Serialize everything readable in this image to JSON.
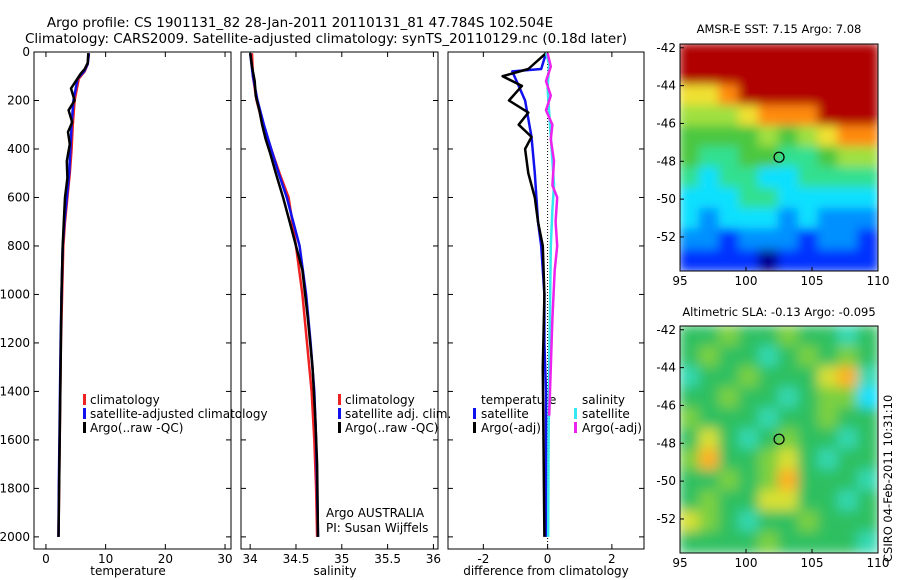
{
  "title": {
    "line1": "Argo profile: CS 1901131_82 28-Jan-2011 20110131_81 47.784S 102.504E",
    "line2": "Climatology: CARS2009. Satellite-adjusted climatology: synTS_20110129.nc (0.18d later)"
  },
  "footer_credit": "CSIRO 04-Feb-2011 10:31:10",
  "colors": {
    "climatology": "#ee2222",
    "satellite": "#1111ee",
    "argo": "#000000",
    "sal_satellite": "#33e8ee",
    "sal_argo": "#ee22ee",
    "zero_line": "#000000"
  },
  "chart_data": [
    {
      "type": "line",
      "id": "temperature",
      "xlabel": "temperature",
      "ylabel": "",
      "xlim": [
        -2,
        31
      ],
      "ylim": [
        2050,
        0
      ],
      "xticks": [
        0,
        10,
        20,
        30
      ],
      "xtick_labels": [
        "0",
        "10",
        "20",
        "30"
      ],
      "yticks": [
        0,
        200,
        400,
        600,
        800,
        1000,
        1200,
        1400,
        1600,
        1800,
        2000
      ],
      "ytick_labels": [
        "0",
        "200",
        "400",
        "600",
        "800",
        "1000",
        "1200",
        "1400",
        "1600",
        "1800",
        "2000"
      ],
      "legend": [
        "climatology",
        "satellite-adjusted climatology",
        "Argo(..raw -QC)"
      ],
      "legend_position": "lower-right",
      "series": [
        {
          "name": "climatology",
          "color_key": "climatology",
          "x": [
            7.2,
            7.0,
            6.5,
            5.5,
            4.8,
            4.5,
            4.3,
            4.0,
            3.6,
            3.2,
            2.9,
            2.7,
            2.5,
            2.4,
            2.3,
            2.2,
            2.1
          ],
          "y": [
            5,
            50,
            80,
            110,
            200,
            300,
            400,
            500,
            600,
            700,
            800,
            1000,
            1200,
            1400,
            1600,
            1800,
            2000
          ]
        },
        {
          "name": "satellite-adjusted climatology",
          "color_key": "satellite",
          "x": [
            7.2,
            7.0,
            6.4,
            5.3,
            4.6,
            4.3,
            4.1,
            3.9,
            3.5,
            3.1,
            2.8,
            2.6,
            2.45,
            2.35,
            2.25,
            2.15,
            2.1
          ],
          "y": [
            5,
            50,
            80,
            110,
            200,
            300,
            400,
            500,
            600,
            700,
            800,
            1000,
            1200,
            1400,
            1600,
            1800,
            2000
          ]
        },
        {
          "name": "Argo(..raw -QC)",
          "color_key": "argo",
          "x": [
            7.1,
            7.0,
            6.5,
            5.8,
            4.2,
            4.8,
            3.8,
            4.4,
            3.7,
            4.0,
            3.5,
            3.6,
            3.2,
            3.0,
            2.8,
            2.6,
            2.5,
            2.4,
            2.3,
            2.2,
            2.1
          ],
          "y": [
            5,
            45,
            70,
            90,
            150,
            200,
            240,
            290,
            330,
            380,
            450,
            520,
            600,
            700,
            800,
            1000,
            1200,
            1400,
            1600,
            1800,
            2000
          ]
        }
      ]
    },
    {
      "type": "line",
      "id": "salinity",
      "xlabel": "salinity",
      "xlim": [
        33.9,
        36.05
      ],
      "ylim": [
        2050,
        0
      ],
      "xticks": [
        34,
        34.5,
        35,
        35.5,
        36
      ],
      "xtick_labels": [
        "34",
        "34.5",
        "35",
        "35.5",
        "36"
      ],
      "legend": [
        "climatology",
        "satellite adj. clim.",
        "Argo(..raw -QC)"
      ],
      "legend_position": "lower-right",
      "annotation": [
        "Argo AUSTRALIA",
        "PI: Susan Wijffels"
      ],
      "series": [
        {
          "name": "climatology",
          "color_key": "climatology",
          "x": [
            34.02,
            34.03,
            34.07,
            34.14,
            34.23,
            34.32,
            34.42,
            34.5,
            34.57,
            34.62,
            34.67,
            34.7,
            34.72,
            34.73
          ],
          "y": [
            5,
            100,
            200,
            300,
            400,
            500,
            600,
            800,
            1000,
            1200,
            1400,
            1600,
            1800,
            2000
          ]
        },
        {
          "name": "satellite adj. clim.",
          "color_key": "satellite",
          "x": [
            34.0,
            34.03,
            34.08,
            34.15,
            34.23,
            34.31,
            34.4,
            34.54,
            34.61,
            34.66,
            34.7,
            34.72,
            34.73,
            34.74
          ],
          "y": [
            5,
            100,
            200,
            300,
            400,
            500,
            600,
            800,
            1000,
            1200,
            1400,
            1600,
            1800,
            2000
          ]
        },
        {
          "name": "Argo(..raw -QC)",
          "color_key": "argo",
          "x": [
            34.0,
            34.02,
            34.05,
            34.06,
            34.1,
            34.13,
            34.17,
            34.22,
            34.28,
            34.36,
            34.43,
            34.57,
            34.63,
            34.68,
            34.71,
            34.73,
            34.74
          ],
          "y": [
            5,
            60,
            120,
            180,
            240,
            300,
            360,
            420,
            500,
            600,
            700,
            900,
            1100,
            1300,
            1500,
            1700,
            2000
          ]
        }
      ]
    },
    {
      "type": "line",
      "id": "difference",
      "xlabel": "difference from climatology",
      "xlim": [
        -3.1,
        3.0
      ],
      "ylim": [
        2050,
        0
      ],
      "xticks": [
        -2,
        0,
        2
      ],
      "xtick_labels": [
        "-2",
        "0",
        "2"
      ],
      "legend_temperature": {
        "title": "temperature",
        "items": [
          "satellite",
          "Argo(-adj)"
        ]
      },
      "legend_salinity": {
        "title": "salinity",
        "items": [
          "satellite",
          "Argo(-adj)"
        ]
      },
      "legend_position": "lower-middle",
      "series": [
        {
          "name": "temperature satellite",
          "color_key": "satellite",
          "x": [
            -0.05,
            -0.2,
            -1.1,
            -0.7,
            -0.5,
            -0.4,
            -0.35,
            -0.3,
            -0.2,
            -0.1,
            -0.1,
            -0.05,
            -0.05,
            -0.05
          ],
          "y": [
            5,
            70,
            80,
            200,
            350,
            500,
            600,
            700,
            800,
            1000,
            1200,
            1400,
            1700,
            2000
          ]
        },
        {
          "name": "temperature Argo(-adj)",
          "color_key": "argo",
          "x": [
            -0.05,
            -0.6,
            -1.4,
            -0.8,
            -1.2,
            -0.6,
            -0.9,
            -0.5,
            -0.7,
            -0.6,
            -0.4,
            -0.3,
            -0.15,
            -0.1,
            -0.15,
            -0.1
          ],
          "y": [
            5,
            70,
            100,
            140,
            200,
            250,
            300,
            350,
            400,
            500,
            600,
            700,
            800,
            1000,
            1300,
            2000
          ]
        },
        {
          "name": "salinity satellite",
          "color_key": "sal_satellite",
          "x": [
            -0.05,
            0.05,
            0.0,
            0.05,
            0.1,
            0.15,
            0.2,
            0.15,
            0.1,
            0.08,
            0.05,
            0.03,
            0.02
          ],
          "y": [
            5,
            50,
            150,
            250,
            350,
            450,
            550,
            650,
            800,
            1000,
            1300,
            1600,
            2000
          ]
        },
        {
          "name": "salinity Argo(-adj)",
          "color_key": "sal_argo",
          "x": [
            0.0,
            0.1,
            -0.05,
            0.1,
            -0.05,
            0.15,
            0.1,
            0.2,
            0.15,
            0.3,
            0.25,
            0.3,
            0.22,
            0.15,
            0.1,
            0.05
          ],
          "y": [
            5,
            60,
            120,
            180,
            240,
            300,
            360,
            450,
            550,
            600,
            700,
            800,
            900,
            1100,
            1300,
            1500
          ]
        }
      ]
    },
    {
      "type": "heatmap",
      "id": "sst_map",
      "title": "AMSR-E SST: 7.15 Argo: 7.08",
      "xlim": [
        95,
        110
      ],
      "ylim": [
        -53.8,
        -41.8
      ],
      "xticks": [
        95,
        100,
        105,
        110
      ],
      "xtick_labels": [
        "95",
        "100",
        "105",
        "110"
      ],
      "yticks": [
        -42,
        -44,
        -46,
        -48,
        -50,
        -52
      ],
      "ytick_labels": [
        "-42",
        "-44",
        "-46",
        "-48",
        "-50",
        "-52"
      ],
      "float_position": {
        "lon": 102.504,
        "lat": -47.784
      },
      "field_rows_north_to_south": [
        [
          9,
          9,
          9,
          9,
          9,
          9,
          9,
          9,
          9,
          9
        ],
        [
          9,
          9,
          9,
          9,
          9,
          9,
          9,
          9,
          9,
          9
        ],
        [
          7,
          7,
          8,
          9,
          9,
          9,
          9,
          9,
          9,
          9
        ],
        [
          6,
          6,
          6,
          7,
          8,
          8,
          8,
          9,
          9,
          9
        ],
        [
          5,
          5,
          5,
          5,
          6,
          5,
          6,
          7,
          8,
          8
        ],
        [
          5,
          4,
          4,
          5,
          5,
          4,
          4,
          5,
          6,
          6
        ],
        [
          4,
          3,
          4,
          4,
          3,
          3,
          4,
          4,
          4,
          4
        ],
        [
          3,
          3,
          3,
          4,
          4,
          3,
          3,
          3,
          3,
          3
        ],
        [
          3,
          2,
          3,
          3,
          3,
          2,
          3,
          2,
          2,
          2
        ],
        [
          2,
          2,
          1,
          2,
          2,
          2,
          1,
          2,
          2,
          1
        ],
        [
          1,
          1,
          1,
          1,
          0,
          1,
          1,
          1,
          1,
          1
        ]
      ]
    },
    {
      "type": "heatmap",
      "id": "sla_map",
      "title": "Altimetric SLA: -0.13 Argo: -0.095",
      "xlim": [
        95,
        110
      ],
      "ylim": [
        -53.8,
        -41.8
      ],
      "xticks": [
        95,
        100,
        105,
        110
      ],
      "xtick_labels": [
        "95",
        "100",
        "105",
        "110"
      ],
      "yticks": [
        -42,
        -44,
        -46,
        -48,
        -50,
        -52
      ],
      "ytick_labels": [
        "-42",
        "-44",
        "-46",
        "-48",
        "-50",
        "-52"
      ],
      "float_position": {
        "lon": 102.504,
        "lat": -47.784
      },
      "field_rows_north_to_south": [
        [
          4,
          4,
          5,
          4,
          4,
          5,
          4,
          4,
          3,
          4
        ],
        [
          4,
          5,
          4,
          4,
          3,
          4,
          5,
          4,
          5,
          4
        ],
        [
          3,
          4,
          4,
          5,
          4,
          4,
          4,
          6,
          7,
          3
        ],
        [
          4,
          4,
          5,
          4,
          4,
          3,
          4,
          5,
          5,
          2
        ],
        [
          5,
          4,
          4,
          4,
          3,
          4,
          4,
          5,
          4,
          4
        ],
        [
          4,
          6,
          4,
          3,
          4,
          5,
          4,
          4,
          3,
          4
        ],
        [
          5,
          7,
          4,
          4,
          5,
          6,
          4,
          3,
          4,
          4
        ],
        [
          4,
          4,
          5,
          4,
          5,
          7,
          4,
          4,
          4,
          3
        ],
        [
          4,
          5,
          4,
          4,
          6,
          6,
          4,
          4,
          3,
          4
        ],
        [
          6,
          5,
          4,
          3,
          4,
          4,
          5,
          4,
          4,
          4
        ],
        [
          4,
          4,
          4,
          4,
          5,
          4,
          4,
          4,
          4,
          3
        ]
      ]
    }
  ]
}
